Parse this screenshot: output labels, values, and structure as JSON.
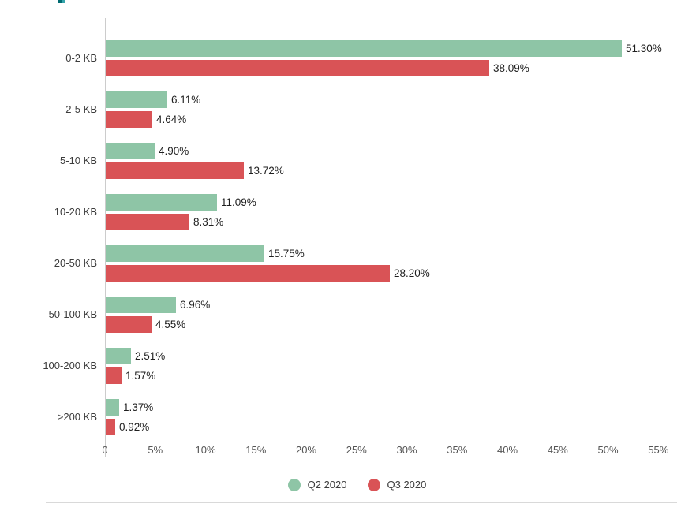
{
  "page": {
    "clipped_title": {
      "description": "bottom sliver of a teal heading clipped at the top edge",
      "color_left": "#006a71",
      "color_right": "#35a4ab"
    }
  },
  "chart_data": {
    "type": "bar",
    "orientation": "horizontal",
    "title": "",
    "categories": [
      "0-2 KB",
      "2-5 KB",
      "5-10 KB",
      "10-20 KB",
      "20-50 KB",
      "50-100 KB",
      "100-200 KB",
      ">200 KB"
    ],
    "series": [
      {
        "name": "Q2 2020",
        "color": "#8ec5a6",
        "values": [
          51.3,
          6.11,
          4.9,
          11.09,
          15.75,
          6.96,
          2.51,
          1.37
        ],
        "labels": [
          "51.30%",
          "6.11%",
          "4.90%",
          "11.09%",
          "15.75%",
          "6.96%",
          "2.51%",
          "1.37%"
        ]
      },
      {
        "name": "Q3 2020",
        "color": "#d95356",
        "values": [
          38.09,
          4.64,
          13.72,
          8.31,
          28.2,
          4.55,
          1.57,
          0.92
        ],
        "labels": [
          "38.09%",
          "4.64%",
          "13.72%",
          "8.31%",
          "28.20%",
          "4.55%",
          "1.57%",
          "0.92%"
        ]
      }
    ],
    "x_ticks": [
      {
        "label": "0",
        "value": 0
      },
      {
        "label": "5%",
        "value": 5
      },
      {
        "label": "10%",
        "value": 10
      },
      {
        "label": "15%",
        "value": 15
      },
      {
        "label": "20%",
        "value": 20
      },
      {
        "label": "25%",
        "value": 25
      },
      {
        "label": "30%",
        "value": 30
      },
      {
        "label": "35%",
        "value": 35
      },
      {
        "label": "40%",
        "value": 40
      },
      {
        "label": "45%",
        "value": 45
      },
      {
        "label": "50%",
        "value": 50
      },
      {
        "label": "55%",
        "value": 55
      }
    ],
    "xlim": [
      0,
      55
    ],
    "grid": false,
    "legend_position": "bottom",
    "axis_color": "#cccccc",
    "value_label_color": "#1f1f1f",
    "tick_label_color": "#555555",
    "category_label_color": "#3c3c3c"
  }
}
